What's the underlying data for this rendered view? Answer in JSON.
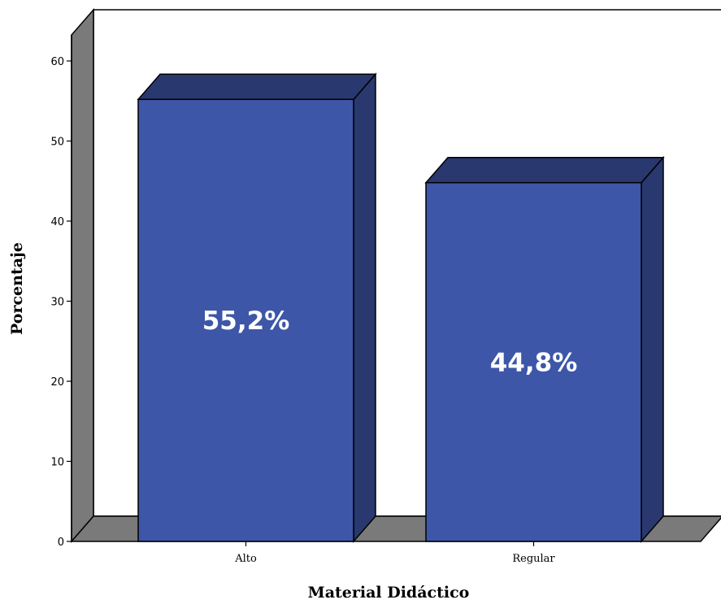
{
  "chart_data": {
    "type": "bar",
    "categories": [
      "Alto",
      "Regular"
    ],
    "values": [
      55.2,
      44.8
    ],
    "data_labels": [
      "55,2%",
      "44,8%"
    ],
    "xlabel": "Material Didáctico",
    "ylabel": "Porcentaje",
    "ylim": [
      0,
      60
    ],
    "yticks": [
      "0",
      "10",
      "20",
      "30",
      "40",
      "50",
      "60"
    ],
    "grid": false,
    "legend": "none",
    "style": "3d",
    "colors": {
      "bar_front": "#3d56a8",
      "bar_side": "#29386e",
      "bar_top": "#29386e",
      "wall_side": "#7a7a7a",
      "floor": "#7a7a7a",
      "back_wall": "#ffffff"
    }
  }
}
